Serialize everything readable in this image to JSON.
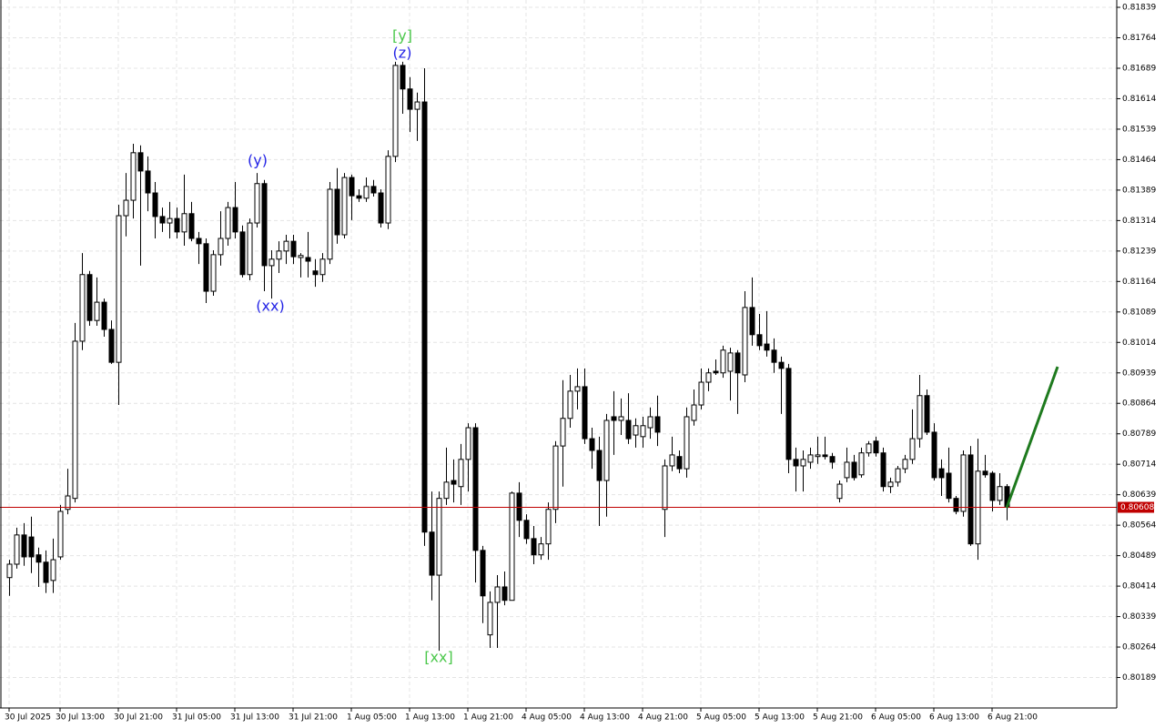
{
  "chart_data": {
    "type": "candlestick",
    "categories": [
      "30 Jul 2025",
      null,
      null,
      null,
      null,
      null,
      null,
      "30 Jul 13:00",
      null,
      null,
      null,
      null,
      null,
      null,
      null,
      "30 Jul 21:00",
      null,
      null,
      null,
      null,
      null,
      null,
      null,
      "31 Jul 05:00",
      null,
      null,
      null,
      null,
      null,
      null,
      null,
      "31 Jul 13:00",
      null,
      null,
      null,
      null,
      null,
      null,
      null,
      "31 Jul 21:00",
      null,
      null,
      null,
      null,
      null,
      null,
      null,
      "1 Aug 05:00",
      null,
      null,
      null,
      null,
      null,
      null,
      null,
      "1 Aug 13:00",
      null,
      null,
      null,
      null,
      null,
      null,
      null,
      "1 Aug 21:00",
      null,
      null,
      null,
      null,
      null,
      null,
      null,
      "4 Aug 05:00",
      null,
      null,
      null,
      null,
      null,
      null,
      null,
      "4 Aug 13:00",
      null,
      null,
      null,
      null,
      null,
      null,
      null,
      "4 Aug 21:00",
      null,
      null,
      null,
      null,
      null,
      null,
      null,
      "5 Aug 05:00",
      null,
      null,
      null,
      null,
      null,
      null,
      null,
      "5 Aug 13:00",
      null,
      null,
      null,
      null,
      null,
      null,
      null,
      "5 Aug 21:00",
      null,
      null,
      null,
      null,
      null,
      null,
      null,
      "6 Aug 05:00",
      null,
      null,
      null,
      null,
      null,
      null,
      null,
      "6 Aug 13:00",
      null,
      null,
      null,
      null,
      null,
      null,
      null,
      "6 Aug 21:00",
      null,
      null
    ],
    "open": [
      0.80435,
      0.80468,
      0.8054,
      0.80535,
      0.80491,
      0.80473,
      0.80428,
      0.80486,
      0.80603,
      0.8063,
      0.81017,
      0.81181,
      0.81068,
      0.81113,
      0.81046,
      0.80965,
      0.81326,
      0.81364,
      0.81481,
      0.81436,
      0.81382,
      0.81324,
      0.81308,
      0.81319,
      0.81286,
      0.81331,
      0.8127,
      0.81257,
      0.8114,
      0.8123,
      0.8127,
      0.81346,
      0.81286,
      0.81181,
      0.81308,
      0.81405,
      0.81203,
      0.81219,
      0.81239,
      0.81263,
      0.81223,
      0.81223,
      0.8119,
      0.81181,
      0.81219,
      0.81391,
      0.81279,
      0.8142,
      0.81375,
      0.81369,
      0.81398,
      0.81382,
      0.81308,
      0.81472,
      0.81696,
      0.81638,
      0.81588,
      0.81606,
      0.80547,
      0.80441,
      0.8063,
      0.80674,
      0.80659,
      0.80726,
      0.80804,
      0.80502,
      0.80294,
      0.80374,
      0.80412,
      0.80379,
      0.80643,
      0.80576,
      0.80531,
      0.80491,
      0.80518,
      0.80603,
      0.80759,
      0.80827,
      0.80894,
      0.80905,
      0.80777,
      0.80748,
      0.80674,
      0.80831,
      0.80822,
      0.80822,
      0.80786,
      0.80782,
      0.80804,
      0.80831,
      0.80603,
      0.8071,
      0.80733,
      0.80703,
      0.80822,
      0.8086,
      0.80916,
      0.80943,
      0.80939,
      0.80943,
      0.80988,
      0.80934,
      0.811,
      0.81033,
      0.8101,
      0.80995,
      0.80965,
      0.8095,
      0.80726,
      0.8071,
      0.80719,
      0.80733,
      0.80737,
      0.80733,
      0.8063,
      0.80681,
      0.80719,
      0.80688,
      0.80742,
      0.80771,
      0.80742,
      0.80659,
      0.8067,
      0.80703,
      0.80726,
      0.80777,
      0.80883,
      0.80793,
      0.80703,
      0.80692,
      0.8063,
      0.80598,
      0.80737,
      0.80518,
      0.80697,
      0.80692,
      0.80625,
      0.80659
    ],
    "high": [
      0.80479,
      0.80558,
      0.80569,
      0.80585,
      0.80509,
      0.80502,
      0.80531,
      0.80614,
      0.80703,
      0.81062,
      0.81234,
      0.8119,
      0.81174,
      0.81122,
      0.81068,
      0.81353,
      0.81431,
      0.81503,
      0.81499,
      0.81472,
      0.81409,
      0.81346,
      0.8136,
      0.81346,
      0.81427,
      0.8136,
      0.81286,
      0.8127,
      0.81241,
      0.81337,
      0.8136,
      0.81409,
      0.81302,
      0.81319,
      0.81431,
      0.81414,
      0.81241,
      0.81263,
      0.81279,
      0.81279,
      0.81234,
      0.81286,
      0.81219,
      0.81234,
      0.81409,
      0.81443,
      0.81431,
      0.81427,
      0.81391,
      0.8142,
      0.81414,
      0.81391,
      0.81487,
      0.81705,
      0.81705,
      0.81667,
      0.81629,
      0.81689,
      0.80647,
      0.80647,
      0.80755,
      0.80726,
      0.80764,
      0.80815,
      0.80815,
      0.80513,
      0.80401,
      0.80441,
      0.8045,
      0.80647,
      0.8067,
      0.80591,
      0.80562,
      0.80535,
      0.8062,
      0.80771,
      0.80921,
      0.80934,
      0.8095,
      0.8095,
      0.80804,
      0.80782,
      0.80838,
      0.80894,
      0.80876,
      0.80889,
      0.80827,
      0.80831,
      0.80854,
      0.80883,
      0.80726,
      0.80782,
      0.80748,
      0.80854,
      0.80898,
      0.8095,
      0.8095,
      0.80972,
      0.81006,
      0.81001,
      0.80995,
      0.8114,
      0.81174,
      0.81084,
      0.81091,
      0.81024,
      0.80979,
      0.80961,
      0.80755,
      0.80748,
      0.80755,
      0.80782,
      0.80782,
      0.80742,
      0.80674,
      0.80755,
      0.80737,
      0.80755,
      0.80771,
      0.80782,
      0.80755,
      0.80681,
      0.8071,
      0.80737,
      0.80849,
      0.80934,
      0.80898,
      0.80815,
      0.80726,
      0.80755,
      0.80636,
      0.80748,
      0.80759,
      0.80777,
      0.80737,
      0.80697,
      0.80692,
      0.80665
    ],
    "low": [
      0.8039,
      0.80457,
      0.80464,
      0.80446,
      0.80412,
      0.80397,
      0.80397,
      0.80479,
      0.80591,
      0.8062,
      0.80995,
      0.81055,
      0.81055,
      0.81028,
      0.80961,
      0.8086,
      0.81275,
      0.81319,
      0.81203,
      0.81337,
      0.8127,
      0.81286,
      0.8127,
      0.8127,
      0.81252,
      0.81263,
      0.81207,
      0.81111,
      0.81129,
      0.81203,
      0.81252,
      0.8127,
      0.81174,
      0.81167,
      0.81297,
      0.8114,
      0.81122,
      0.81185,
      0.81207,
      0.81207,
      0.81174,
      0.81174,
      0.81151,
      0.81163,
      0.81207,
      0.81257,
      0.8127,
      0.81315,
      0.8136,
      0.8136,
      0.81373,
      0.81297,
      0.81293,
      0.81458,
      0.81577,
      0.81532,
      0.8151,
      0.80513,
      0.80379,
      0.80255,
      0.80614,
      0.8062,
      0.80614,
      0.80647,
      0.80423,
      0.80323,
      0.80262,
      0.80262,
      0.80367,
      0.80379,
      0.80535,
      0.80518,
      0.80468,
      0.80479,
      0.80479,
      0.80569,
      0.80659,
      0.80804,
      0.80849,
      0.80764,
      0.80703,
      0.80562,
      0.80585,
      0.80737,
      0.80786,
      0.80764,
      0.80755,
      0.80755,
      0.80777,
      0.80759,
      0.80535,
      0.80697,
      0.80692,
      0.80681,
      0.80809,
      0.80849,
      0.80894,
      0.80934,
      0.80927,
      0.80871,
      0.80838,
      0.80916,
      0.81006,
      0.80995,
      0.80979,
      0.80939,
      0.80838,
      0.80692,
      0.80647,
      0.80647,
      0.80703,
      0.80715,
      0.80726,
      0.80703,
      0.8062,
      0.8067,
      0.80674,
      0.80681,
      0.80733,
      0.80733,
      0.80647,
      0.80643,
      0.80659,
      0.80692,
      0.80715,
      0.80755,
      0.80786,
      0.80674,
      0.80636,
      0.8062,
      0.80591,
      0.80585,
      0.80513,
      0.80479,
      0.80681,
      0.80598,
      0.80614,
      0.80576
    ],
    "close": [
      0.80468,
      0.8054,
      0.80486,
      0.80486,
      0.80473,
      0.80423,
      0.80479,
      0.80598,
      0.80636,
      0.81017,
      0.81181,
      0.81068,
      0.81113,
      0.81046,
      0.80965,
      0.81326,
      0.81364,
      0.81481,
      0.81436,
      0.81382,
      0.81324,
      0.81308,
      0.81319,
      0.81286,
      0.81331,
      0.8127,
      0.81257,
      0.8114,
      0.8123,
      0.8127,
      0.81346,
      0.81286,
      0.81181,
      0.81308,
      0.81405,
      0.81203,
      0.81219,
      0.81239,
      0.81263,
      0.81225,
      0.81228,
      0.81214,
      0.81181,
      0.81219,
      0.81391,
      0.81279,
      0.8142,
      0.81375,
      0.81369,
      0.81398,
      0.81382,
      0.81308,
      0.81472,
      0.81696,
      0.81638,
      0.81588,
      0.81606,
      0.80547,
      0.80441,
      0.8063,
      0.8067,
      0.80665,
      0.80726,
      0.80804,
      0.80502,
      0.8039,
      0.80374,
      0.80412,
      0.80379,
      0.80643,
      0.80576,
      0.80531,
      0.80491,
      0.80518,
      0.80603,
      0.80759,
      0.80827,
      0.80894,
      0.80905,
      0.80777,
      0.80748,
      0.80674,
      0.80822,
      0.80822,
      0.80831,
      0.80777,
      0.80809,
      0.80809,
      0.80831,
      0.80793,
      0.8071,
      0.80737,
      0.80703,
      0.80831,
      0.8086,
      0.80916,
      0.80939,
      0.80939,
      0.80995,
      0.80988,
      0.80939,
      0.811,
      0.81033,
      0.81006,
      0.80995,
      0.80965,
      0.8095,
      0.80726,
      0.8071,
      0.80726,
      0.80737,
      0.80737,
      0.80733,
      0.80719,
      0.80665,
      0.80719,
      0.80681,
      0.80742,
      0.80764,
      0.80742,
      0.80659,
      0.8067,
      0.80703,
      0.80726,
      0.80777,
      0.80883,
      0.80793,
      0.80681,
      0.80681,
      0.8063,
      0.80598,
      0.80737,
      0.80518,
      0.80697,
      0.80688,
      0.80625,
      0.80659,
      0.80608
    ],
    "ylim": [
      0.80114,
      0.81857
    ],
    "yticks": [
      0.81839,
      0.81764,
      0.81689,
      0.81614,
      0.81539,
      0.81464,
      0.81389,
      0.81314,
      0.81239,
      0.81164,
      0.81089,
      0.81014,
      0.80939,
      0.80864,
      0.80789,
      0.80714,
      0.80639,
      0.80564,
      0.80489,
      0.80414,
      0.80339,
      0.80264,
      0.80189
    ],
    "grid": true,
    "up_color": "#ffffff",
    "down_color": "#000000",
    "wick_color": "#000000",
    "last_price": 0.80608,
    "last_price_color": "#c00000",
    "annotations": [
      {
        "text": "[y]",
        "color": "#4cc84c"
      },
      {
        "text": "(z)",
        "color": "#2323e6"
      },
      {
        "text": "(y)",
        "color": "#2323e6"
      },
      {
        "text": "(xx)",
        "color": "#2323e6"
      },
      {
        "text": "[xx]",
        "color": "#4cc84c"
      }
    ]
  }
}
